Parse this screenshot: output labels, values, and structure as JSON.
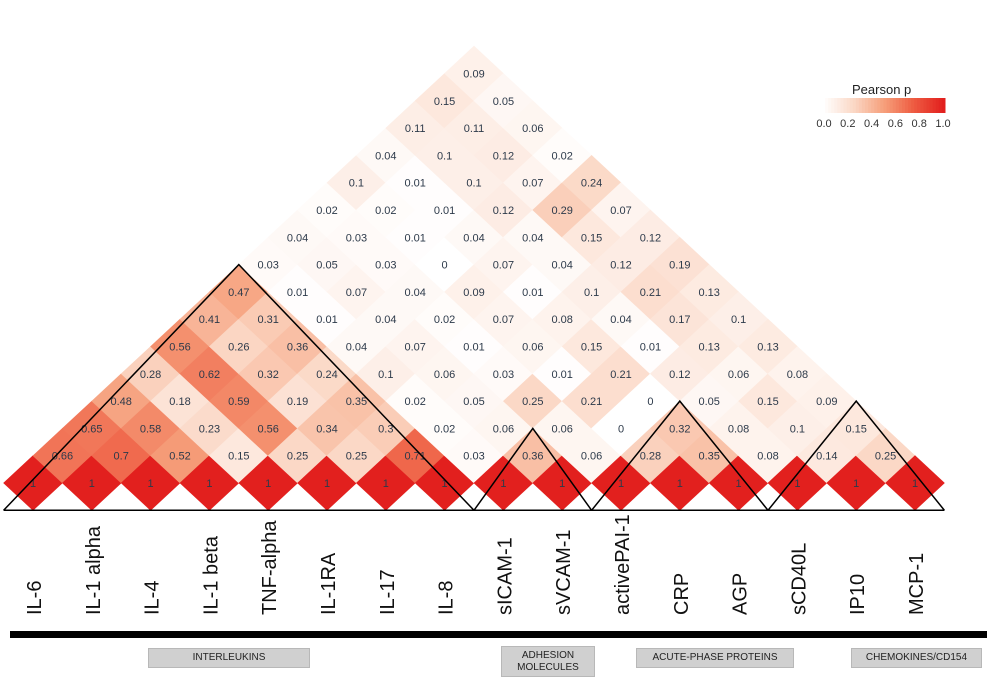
{
  "chart_data": {
    "type": "heatmap",
    "title": "",
    "variables": [
      "IL-6",
      "IL-1 alpha",
      "IL-4",
      "IL-1 beta",
      "TNF-alpha",
      "IL-1RA",
      "IL-17",
      "IL-8",
      "sICAM-1",
      "sVCAM-1",
      "activePAI-1",
      "CRP",
      "AGP",
      "sCD40L",
      "IP10",
      "MCP-1"
    ],
    "lower_triangle_values": [
      [
        1
      ],
      [
        0.66,
        1
      ],
      [
        0.65,
        0.7,
        1
      ],
      [
        0.48,
        0.58,
        0.52,
        1
      ],
      [
        0.28,
        0.18,
        0.23,
        0.15,
        1
      ],
      [
        0.56,
        0.62,
        0.59,
        0.56,
        0.25,
        1
      ],
      [
        0.41,
        0.26,
        0.32,
        0.19,
        0.34,
        0.25,
        1
      ],
      [
        0.47,
        0.31,
        0.36,
        0.24,
        0.35,
        0.3,
        0.71,
        1
      ],
      [
        0.03,
        0.01,
        0.01,
        0.04,
        0.1,
        0.02,
        0.02,
        0.03,
        1
      ],
      [
        0.04,
        0.05,
        0.07,
        0.04,
        0.07,
        0.06,
        0.05,
        0.06,
        0.36,
        1
      ],
      [
        0.02,
        0.03,
        0.03,
        0.04,
        0.02,
        0.01,
        0.03,
        0.25,
        0.06,
        0.06,
        1
      ],
      [
        0.1,
        0.02,
        0.01,
        0,
        0.09,
        0.07,
        0.06,
        0.01,
        0.21,
        0,
        0.28,
        1
      ],
      [
        0.04,
        0.01,
        0.01,
        0.04,
        0.07,
        0.01,
        0.08,
        0.15,
        0.21,
        0,
        0.32,
        0.35,
        1
      ],
      [
        0.11,
        0.1,
        0.1,
        0.12,
        0.04,
        0.04,
        0.1,
        0.04,
        0.01,
        0.12,
        0.05,
        0.08,
        0.08,
        1
      ],
      [
        0.15,
        0.11,
        0.12,
        0.07,
        0.29,
        0.15,
        0.12,
        0.21,
        0.17,
        0.13,
        0.06,
        0.15,
        0.1,
        0.14,
        1
      ],
      [
        0.09,
        0.05,
        0.06,
        0.02,
        0.24,
        0.07,
        0.12,
        0.19,
        0.13,
        0.1,
        0.13,
        0.08,
        0.09,
        0.15,
        0.25,
        1
      ]
    ],
    "legend": {
      "title": "Pearson p",
      "ticks": [
        "0.0",
        "0.2",
        "0.4",
        "0.6",
        "0.8",
        "1.0"
      ],
      "colors": [
        "#ffffff",
        "#fbd8c6",
        "#f6a07c",
        "#ee5c42",
        "#e2201e"
      ],
      "position": "top-right"
    },
    "grid": false,
    "groups": [
      {
        "label": "INTERLEUKINS",
        "members": [
          "IL-6",
          "IL-1 alpha",
          "IL-4",
          "IL-1 beta",
          "TNF-alpha",
          "IL-1RA",
          "IL-17",
          "IL-8"
        ]
      },
      {
        "label": "ADHESION MOLECULES",
        "members": [
          "sICAM-1",
          "sVCAM-1"
        ]
      },
      {
        "label": "ACUTE-PHASE PROTEINS",
        "members": [
          "activePAI-1",
          "CRP",
          "AGP"
        ]
      },
      {
        "label": "CHEMOKINES/CD154",
        "members": [
          "sCD40L",
          "IP10",
          "MCP-1"
        ]
      }
    ]
  }
}
